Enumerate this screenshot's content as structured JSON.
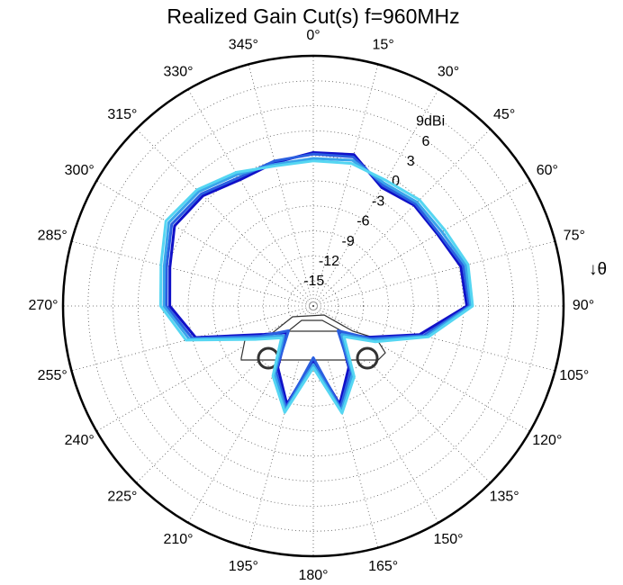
{
  "chart_data": {
    "type": "polar",
    "title": "Realized Gain Cut(s) f=960MHz",
    "theta_label": "↓θ",
    "theta": [
      0,
      15,
      30,
      45,
      60,
      75,
      90,
      105,
      120,
      135,
      150,
      165,
      180,
      195,
      210,
      225,
      240,
      255,
      270,
      285,
      300,
      315,
      330,
      345
    ],
    "thetaticks": [
      {
        "value": 0,
        "label": "0°"
      },
      {
        "value": 15,
        "label": "15°"
      },
      {
        "value": 30,
        "label": "30°"
      },
      {
        "value": 45,
        "label": "45°"
      },
      {
        "value": 60,
        "label": "60°"
      },
      {
        "value": 75,
        "label": "75°"
      },
      {
        "value": 90,
        "label": "90°"
      },
      {
        "value": 105,
        "label": "105°"
      },
      {
        "value": 120,
        "label": "120°"
      },
      {
        "value": 135,
        "label": "135°"
      },
      {
        "value": 150,
        "label": "150°"
      },
      {
        "value": 165,
        "label": "165°"
      },
      {
        "value": 180,
        "label": "180°"
      },
      {
        "value": 195,
        "label": "195°"
      },
      {
        "value": 210,
        "label": "210°"
      },
      {
        "value": 225,
        "label": "225°"
      },
      {
        "value": 240,
        "label": "240°"
      },
      {
        "value": 255,
        "label": "255°"
      },
      {
        "value": 270,
        "label": "270°"
      },
      {
        "value": 285,
        "label": "285°"
      },
      {
        "value": 300,
        "label": "300°"
      },
      {
        "value": 315,
        "label": "315°"
      },
      {
        "value": 330,
        "label": "330°"
      },
      {
        "value": 345,
        "label": "345°"
      }
    ],
    "rlim": [
      -18,
      12
    ],
    "rticks": [
      -15,
      -12,
      -9,
      -6,
      -3,
      0,
      3,
      6,
      {
        "value": 9,
        "label": "9dBi"
      }
    ],
    "grid": true,
    "series": [
      {
        "color": "#1010c8",
        "values": [
          0.4,
          0.8,
          -1.6,
          -0.9,
          -0.8,
          0.3,
          0.4,
          -4.8,
          -10.5,
          -13.5,
          -9.5,
          -5.8,
          -11.5,
          -5.8,
          -9.5,
          -13.5,
          -11.2,
          -3.4,
          -0.8,
          -0.2,
          1.2,
          0.7,
          -0.5,
          -0.2
        ]
      },
      {
        "color": "#2a5fe0",
        "values": [
          0.2,
          0.5,
          -1.3,
          -0.7,
          -0.6,
          0.6,
          0.7,
          -4.3,
          -10.2,
          -13.8,
          -9.0,
          -5.4,
          -11.8,
          -5.4,
          -9.0,
          -13.8,
          -10.8,
          -3.0,
          -0.4,
          0.2,
          1.6,
          1.0,
          -0.2,
          0.0
        ]
      },
      {
        "color": "#3aa4ea",
        "values": [
          -0.3,
          0.1,
          -1.0,
          -0.4,
          -0.2,
          0.9,
          0.9,
          -4.0,
          -9.8,
          -13.2,
          -8.6,
          -5.0,
          -11.0,
          -5.1,
          -8.7,
          -13.0,
          -10.4,
          -2.6,
          -0.1,
          0.5,
          2.0,
          1.4,
          0.2,
          -0.4
        ]
      },
      {
        "color": "#55d6f2",
        "values": [
          -0.6,
          -0.3,
          -0.6,
          0.0,
          0.2,
          1.2,
          1.1,
          -3.7,
          -9.4,
          -12.8,
          -8.2,
          -4.7,
          -10.6,
          -4.8,
          -8.3,
          -12.6,
          -10.0,
          -2.2,
          0.3,
          0.9,
          2.4,
          1.7,
          0.5,
          -0.6
        ]
      }
    ]
  }
}
